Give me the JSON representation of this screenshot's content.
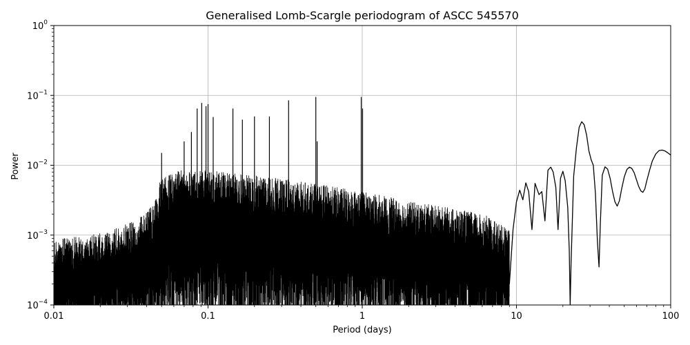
{
  "chart_data": {
    "type": "line",
    "title": "Generalised Lomb-Scargle periodogram of ASCC 545570",
    "xlabel": "Period (days)",
    "ylabel": "Power",
    "xscale": "log",
    "yscale": "log",
    "xlim": [
      0.01,
      100
    ],
    "ylim": [
      0.0001,
      1
    ],
    "grid": true,
    "line_color": "#000000",
    "x_ticks": [
      {
        "value": 0.01,
        "label": "0.01"
      },
      {
        "value": 0.1,
        "label": "0.1"
      },
      {
        "value": 1,
        "label": "1"
      },
      {
        "value": 10,
        "label": "10"
      },
      {
        "value": 100,
        "label": "100"
      }
    ],
    "y_ticks": [
      {
        "value": 0.0001,
        "base": "10",
        "exp": "−4"
      },
      {
        "value": 0.001,
        "base": "10",
        "exp": "−3"
      },
      {
        "value": 0.01,
        "base": "10",
        "exp": "−2"
      },
      {
        "value": 0.1,
        "base": "10",
        "exp": "−1"
      },
      {
        "value": 1,
        "base": "10",
        "exp": "0"
      }
    ],
    "smooth_series": {
      "name": "",
      "x": [
        9.0,
        9.5,
        10.0,
        10.5,
        11.0,
        11.5,
        12.0,
        12.6,
        13.2,
        14.0,
        14.6,
        15.3,
        16.0,
        16.7,
        17.3,
        18.0,
        18.6,
        19.3,
        20.0,
        20.7,
        21.5,
        22.0,
        22.3,
        22.6,
        23.5,
        24.5,
        25.5,
        26.5,
        27.5,
        28.5,
        29.5,
        30.5,
        31.5,
        32.5,
        33.5,
        34.3,
        35.0,
        36.0,
        37.5,
        39.0,
        40.5,
        42.0,
        43.5,
        45.0,
        46.5,
        48.0,
        50.0,
        52.0,
        54.0,
        56.0,
        58.0,
        60.0,
        62.0,
        64.0,
        66.0,
        68.0,
        70.0,
        73.0,
        76.0,
        80.0,
        84.0,
        88.0,
        92.0,
        96.0,
        100.0
      ],
      "y": [
        0.0002,
        0.0012,
        0.003,
        0.0044,
        0.0032,
        0.0056,
        0.0042,
        0.0012,
        0.0055,
        0.0038,
        0.0042,
        0.0016,
        0.0085,
        0.0094,
        0.008,
        0.0048,
        0.0012,
        0.0065,
        0.0082,
        0.006,
        0.0025,
        0.0006,
        0.0001,
        0.0004,
        0.007,
        0.018,
        0.035,
        0.042,
        0.038,
        0.027,
        0.016,
        0.012,
        0.01,
        0.004,
        0.0008,
        0.00035,
        0.0015,
        0.0072,
        0.0095,
        0.0088,
        0.0065,
        0.0042,
        0.003,
        0.0026,
        0.0031,
        0.0045,
        0.0068,
        0.0087,
        0.0094,
        0.009,
        0.0078,
        0.0062,
        0.005,
        0.0043,
        0.0041,
        0.0046,
        0.006,
        0.0085,
        0.0115,
        0.0145,
        0.0162,
        0.0165,
        0.016,
        0.015,
        0.014
      ]
    },
    "peaks": [
      {
        "x": 0.085,
        "y": 0.065
      },
      {
        "x": 0.091,
        "y": 0.078
      },
      {
        "x": 0.097,
        "y": 0.07
      },
      {
        "x": 0.1,
        "y": 0.075
      },
      {
        "x": 0.108,
        "y": 0.049
      },
      {
        "x": 0.145,
        "y": 0.065
      },
      {
        "x": 0.167,
        "y": 0.045
      },
      {
        "x": 0.2,
        "y": 0.05
      },
      {
        "x": 0.25,
        "y": 0.05
      },
      {
        "x": 0.333,
        "y": 0.085
      },
      {
        "x": 0.5,
        "y": 0.095
      },
      {
        "x": 0.51,
        "y": 0.022
      },
      {
        "x": 0.985,
        "y": 0.095
      },
      {
        "x": 1.005,
        "y": 0.065
      },
      {
        "x": 0.05,
        "y": 0.015
      },
      {
        "x": 0.07,
        "y": 0.022
      },
      {
        "x": 0.078,
        "y": 0.03
      }
    ]
  }
}
